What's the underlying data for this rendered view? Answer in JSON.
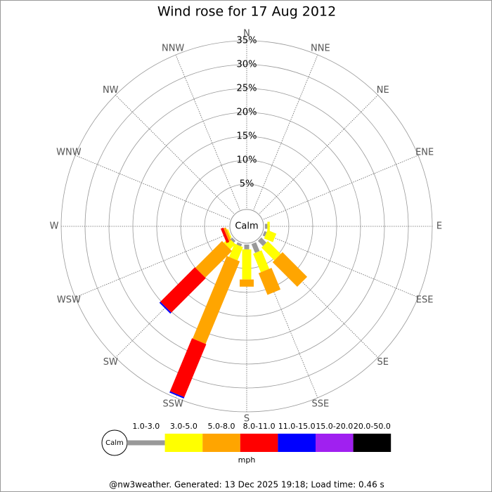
{
  "chart_data": {
    "type": "windrose",
    "title": "Wind rose for 17 Aug 2012",
    "directions": [
      "N",
      "NNE",
      "NE",
      "ENE",
      "E",
      "ESE",
      "SE",
      "SSE",
      "S",
      "SSW",
      "SW",
      "WSW",
      "W",
      "WNW",
      "NW",
      "NNW"
    ],
    "rlim": [
      0,
      35
    ],
    "rticks": [
      {
        "value": 5,
        "label": "5%"
      },
      {
        "value": 10,
        "label": "10%"
      },
      {
        "value": 15,
        "label": "15%"
      },
      {
        "value": 20,
        "label": "20%"
      },
      {
        "value": 25,
        "label": "25%"
      },
      {
        "value": 30,
        "label": "30%"
      },
      {
        "value": 35,
        "label": "35%"
      }
    ],
    "calm_label": "Calm",
    "unit": "mph",
    "series": [
      {
        "name": "1.0-3.0",
        "color": "#999999",
        "values": [
          0,
          0,
          0,
          0,
          0.5,
          0.5,
          1.5,
          2.0,
          1.0,
          0.5,
          0.5,
          0,
          0,
          0,
          0,
          0
        ]
      },
      {
        "name": "3.0-5.0",
        "color": "#ffff00",
        "values": [
          0,
          0,
          0,
          0,
          0.5,
          2.0,
          3.8,
          4.2,
          6.3,
          3.0,
          1.5,
          0.3,
          0,
          0,
          0,
          0
        ]
      },
      {
        "name": "5.0-8.0",
        "color": "#ffa500",
        "values": [
          0,
          0,
          0,
          0,
          0,
          0,
          7.3,
          4.9,
          1.5,
          18.7,
          7.9,
          0.5,
          0,
          0,
          0,
          0
        ]
      },
      {
        "name": "8.0-11.0",
        "color": "#ff0000",
        "values": [
          0,
          0,
          0,
          0,
          0,
          0,
          0,
          0,
          0,
          12.0,
          10.2,
          0.6,
          0,
          0,
          0,
          0
        ]
      },
      {
        "name": "11.0-15.0",
        "color": "#0000ff",
        "values": [
          0,
          0,
          0,
          0,
          0,
          0,
          0,
          0,
          0,
          0.3,
          0.3,
          0,
          0,
          0,
          0,
          0
        ]
      },
      {
        "name": "15.0-20.0",
        "color": "#a020f0",
        "values": [
          0,
          0,
          0,
          0,
          0,
          0,
          0,
          0,
          0,
          0,
          0,
          0,
          0,
          0,
          0,
          0
        ]
      },
      {
        "name": "20.0-50.0",
        "color": "#000000",
        "values": [
          0,
          0,
          0,
          0,
          0,
          0,
          0,
          0,
          0,
          0,
          0,
          0,
          0,
          0,
          0,
          0
        ]
      }
    ],
    "footer": "@nw3weather. Generated: 13 Dec 2025 19:18; Load time: 0.46 s"
  }
}
